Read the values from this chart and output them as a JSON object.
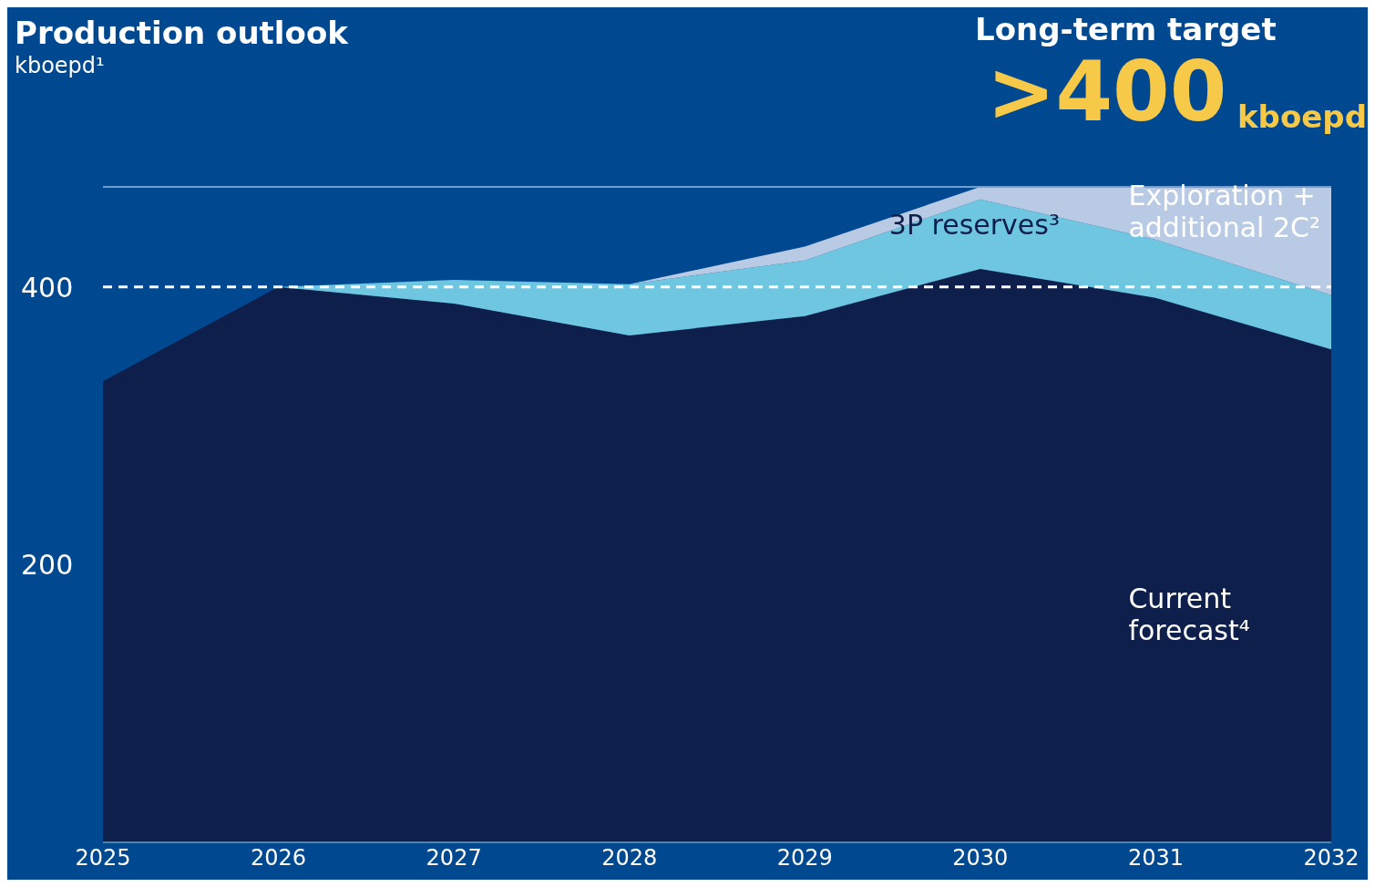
{
  "chart_data": {
    "type": "area",
    "stacked": true,
    "title": "Production outlook",
    "subtitle": "kboepd¹",
    "annotations": [
      "Long-term target",
      ">400",
      "kboepd"
    ],
    "x": [
      2025,
      2026,
      2027,
      2028,
      2029,
      2030,
      2031,
      2032
    ],
    "xlim": [
      2025,
      2032
    ],
    "xticks": [
      2025,
      2026,
      2027,
      2028,
      2029,
      2030,
      2031,
      2032
    ],
    "ylim": [
      0,
      472
    ],
    "yticks": [
      200,
      400
    ],
    "series": [
      {
        "name": "Current forecast⁴",
        "color": "#0f1f4b",
        "values": [
          332,
          400,
          388,
          365,
          379,
          413,
          392,
          355
        ]
      },
      {
        "name": "3P reserves³",
        "color": "#6ec6e0",
        "values": [
          0,
          0,
          17,
          37,
          40,
          50,
          42,
          39
        ]
      },
      {
        "name": "Exploration + additional 2C²",
        "color": "#b9cbe4",
        "values": [
          0,
          0,
          0,
          0,
          10,
          9,
          38,
          78
        ]
      }
    ],
    "ref_lines": [
      {
        "axis": "y",
        "value": 400,
        "label": null,
        "color": "#ffffff",
        "line_style": "dashed"
      }
    ]
  }
}
